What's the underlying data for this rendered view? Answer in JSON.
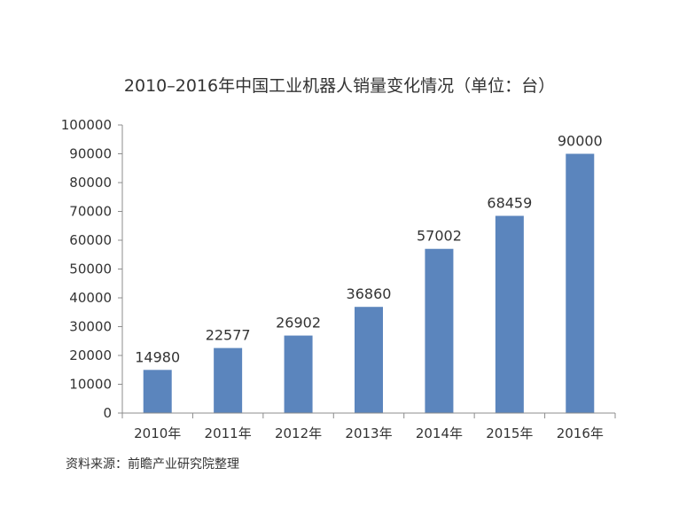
{
  "chart_data": {
    "type": "bar",
    "title": "2010–2016年中国工业机器人销量变化情况（单位：台）",
    "categories": [
      "2010年",
      "2011年",
      "2012年",
      "2013年",
      "2014年",
      "2015年",
      "2016年"
    ],
    "values": [
      14980,
      22577,
      26902,
      36860,
      57002,
      68459,
      90000
    ],
    "data_labels": [
      "14980",
      "22577",
      "26902",
      "36860",
      "57002",
      "68459",
      "90000"
    ],
    "yticks": [
      0,
      10000,
      20000,
      30000,
      40000,
      50000,
      60000,
      70000,
      80000,
      90000,
      100000
    ],
    "ylim": [
      0,
      100000
    ],
    "xlabel": "",
    "ylabel": "",
    "grid": false,
    "legend": "none",
    "bar_color": "#5b85bd",
    "axis_color": "#8c8c8c"
  },
  "source_note": "资料来源：前瞻产业研究院整理"
}
